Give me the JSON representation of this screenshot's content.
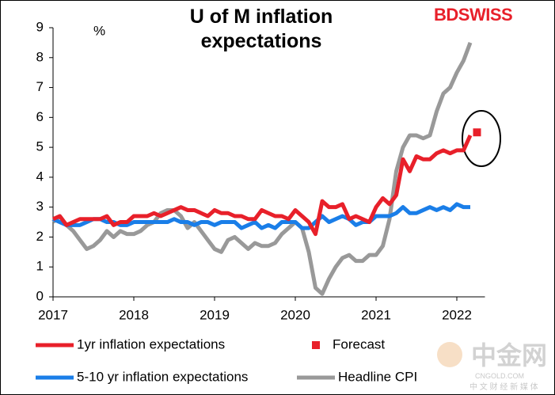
{
  "chart_data": {
    "type": "line",
    "title": "U of M inflation expectations",
    "y_label": "%",
    "categories": [
      "2017",
      null,
      null,
      null,
      null,
      null,
      null,
      null,
      null,
      null,
      null,
      null,
      "2018",
      null,
      null,
      null,
      null,
      null,
      null,
      null,
      null,
      null,
      null,
      null,
      "2019",
      null,
      null,
      null,
      null,
      null,
      null,
      null,
      null,
      null,
      null,
      null,
      "2020",
      null,
      null,
      null,
      null,
      null,
      null,
      null,
      null,
      null,
      null,
      null,
      "2021",
      null,
      null,
      null,
      null,
      null,
      null,
      null,
      null,
      null,
      null,
      null,
      "2022",
      null,
      null,
      null
    ],
    "ylim": [
      0,
      9
    ],
    "yticks": [
      0,
      1,
      2,
      3,
      4,
      5,
      6,
      7,
      8,
      9
    ],
    "grid": false,
    "series": [
      {
        "name": "1yr inflation expectations",
        "color": "#e8202a",
        "values": [
          2.6,
          2.7,
          2.4,
          2.5,
          2.6,
          2.6,
          2.6,
          2.6,
          2.7,
          2.4,
          2.5,
          2.5,
          2.7,
          2.7,
          2.7,
          2.8,
          2.7,
          2.8,
          2.9,
          3.0,
          2.9,
          2.9,
          2.8,
          2.7,
          2.9,
          2.8,
          2.8,
          2.7,
          2.7,
          2.6,
          2.6,
          2.9,
          2.8,
          2.7,
          2.7,
          2.6,
          2.9,
          2.7,
          2.5,
          2.1,
          3.2,
          3.0,
          3.0,
          3.1,
          2.6,
          2.7,
          2.6,
          2.5,
          3.0,
          3.3,
          3.1,
          3.4,
          4.6,
          4.2,
          4.7,
          4.6,
          4.6,
          4.8,
          4.9,
          4.8,
          4.9,
          4.9,
          5.4,
          null
        ]
      },
      {
        "name": "Forecast",
        "color": "#e8202a",
        "style": "marker",
        "values": [
          null,
          null,
          null,
          null,
          null,
          null,
          null,
          null,
          null,
          null,
          null,
          null,
          null,
          null,
          null,
          null,
          null,
          null,
          null,
          null,
          null,
          null,
          null,
          null,
          null,
          null,
          null,
          null,
          null,
          null,
          null,
          null,
          null,
          null,
          null,
          null,
          null,
          null,
          null,
          null,
          null,
          null,
          null,
          null,
          null,
          null,
          null,
          null,
          null,
          null,
          null,
          null,
          null,
          null,
          null,
          null,
          null,
          null,
          null,
          null,
          null,
          null,
          null,
          5.5
        ]
      },
      {
        "name": "5-10 yr inflation expectations",
        "color": "#1a7ee8",
        "values": [
          2.6,
          2.5,
          2.4,
          2.4,
          2.4,
          2.5,
          2.6,
          2.6,
          2.5,
          2.5,
          2.4,
          2.4,
          2.5,
          2.5,
          2.5,
          2.5,
          2.5,
          2.5,
          2.6,
          2.5,
          2.5,
          2.4,
          2.5,
          2.5,
          2.4,
          2.5,
          2.5,
          2.5,
          2.3,
          2.4,
          2.5,
          2.3,
          2.4,
          2.3,
          2.5,
          2.5,
          2.5,
          2.3,
          2.3,
          2.5,
          2.7,
          2.5,
          2.6,
          2.7,
          2.6,
          2.4,
          2.5,
          2.5,
          2.7,
          2.7,
          2.7,
          2.8,
          3.0,
          2.8,
          2.8,
          2.9,
          3.0,
          2.9,
          3.0,
          2.9,
          3.1,
          3.0,
          3.0,
          null
        ]
      },
      {
        "name": "Headline CPI",
        "color": "#999999",
        "values": [
          2.5,
          2.7,
          2.4,
          2.2,
          1.9,
          1.6,
          1.7,
          1.9,
          2.2,
          2.0,
          2.2,
          2.1,
          2.1,
          2.2,
          2.4,
          2.5,
          2.8,
          2.9,
          2.9,
          2.7,
          2.3,
          2.5,
          2.2,
          1.9,
          1.6,
          1.5,
          1.9,
          2.0,
          1.8,
          1.6,
          1.8,
          1.7,
          1.7,
          1.8,
          2.1,
          2.3,
          2.5,
          2.3,
          1.5,
          0.3,
          0.1,
          0.6,
          1.0,
          1.3,
          1.4,
          1.2,
          1.2,
          1.4,
          1.4,
          1.7,
          2.6,
          4.2,
          5.0,
          5.4,
          5.4,
          5.3,
          5.4,
          6.2,
          6.8,
          7.0,
          7.5,
          7.9,
          8.5,
          null
        ]
      }
    ]
  },
  "logo": "BDSWISS",
  "watermark": {
    "name": "中金网",
    "site": "CNGOLD.COM",
    "tagline": "中 文 财 经 新 媒 体"
  }
}
